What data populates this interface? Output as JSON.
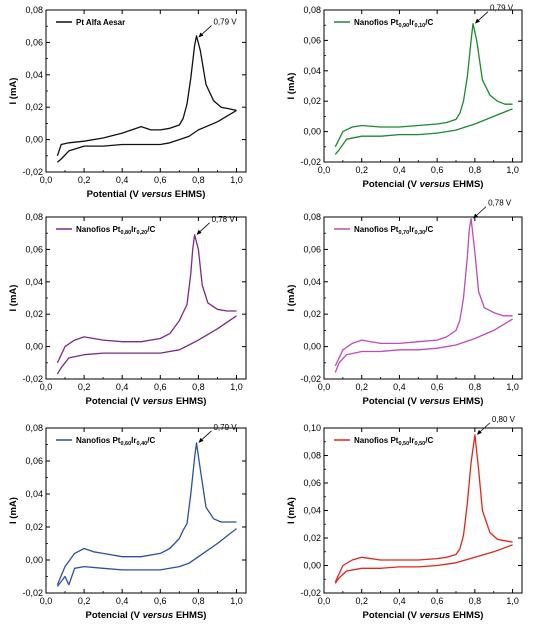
{
  "chart_data": [
    {
      "type": "line",
      "xlabel_parts": [
        "Potential (V ",
        "versus",
        " EHMS)"
      ],
      "ylabel": "I (mA)",
      "xlim": [
        0.0,
        1.05
      ],
      "ylim": [
        -0.02,
        0.08
      ],
      "xticks": [
        "0,0",
        "0,2",
        "0,4",
        "0,6",
        "0,8",
        "1,0"
      ],
      "yticks": [
        "-0,02",
        "0,00",
        "0,02",
        "0,04",
        "0,06",
        "0,08"
      ],
      "legend_parts": [
        "Pt Alfa Aesar"
      ],
      "color": "#111111",
      "annotation": {
        "text": "0,79 V",
        "x": 0.79,
        "y": 0.063
      },
      "series": [
        {
          "name": "anodic",
          "x": [
            0.06,
            0.08,
            0.12,
            0.2,
            0.3,
            0.4,
            0.45,
            0.5,
            0.55,
            0.6,
            0.65,
            0.7,
            0.72,
            0.74,
            0.76,
            0.78,
            0.79,
            0.81,
            0.84,
            0.88,
            0.92,
            0.96,
            1.0
          ],
          "y": [
            -0.01,
            -0.003,
            -0.002,
            -0.001,
            0.001,
            0.004,
            0.006,
            0.008,
            0.006,
            0.006,
            0.007,
            0.009,
            0.013,
            0.022,
            0.038,
            0.058,
            0.064,
            0.055,
            0.034,
            0.024,
            0.02,
            0.019,
            0.018
          ]
        },
        {
          "name": "cathodic",
          "x": [
            1.0,
            0.9,
            0.8,
            0.75,
            0.7,
            0.65,
            0.6,
            0.5,
            0.4,
            0.3,
            0.2,
            0.12,
            0.08,
            0.06
          ],
          "y": [
            0.018,
            0.011,
            0.006,
            0.002,
            0.0,
            -0.002,
            -0.003,
            -0.003,
            -0.003,
            -0.004,
            -0.004,
            -0.007,
            -0.012,
            -0.014
          ]
        }
      ]
    },
    {
      "type": "line",
      "xlabel_parts": [
        "Potencial (V ",
        "versus",
        " EHMS)"
      ],
      "ylabel": "I (mA)",
      "xlim": [
        0.0,
        1.05
      ],
      "ylim": [
        -0.02,
        0.08
      ],
      "xticks": [
        "0,0",
        "0,2",
        "0,4",
        "0,6",
        "0,8",
        "1,0"
      ],
      "yticks": [
        "-0,02",
        "0,00",
        "0,02",
        "0,04",
        "0,06",
        "0,08"
      ],
      "legend_parts": [
        "Nanofios Pt",
        "0,90",
        "Ir",
        "0,10",
        "/C"
      ],
      "color": "#1a8a2e",
      "annotation": {
        "text": "0,79 V",
        "x": 0.79,
        "y": 0.071
      },
      "series": [
        {
          "name": "anodic",
          "x": [
            0.06,
            0.1,
            0.15,
            0.2,
            0.3,
            0.4,
            0.5,
            0.6,
            0.65,
            0.7,
            0.72,
            0.74,
            0.76,
            0.78,
            0.79,
            0.81,
            0.84,
            0.88,
            0.92,
            0.96,
            1.0
          ],
          "y": [
            -0.01,
            0.0,
            0.003,
            0.004,
            0.003,
            0.003,
            0.004,
            0.005,
            0.006,
            0.008,
            0.012,
            0.02,
            0.036,
            0.06,
            0.071,
            0.06,
            0.034,
            0.024,
            0.02,
            0.018,
            0.018
          ]
        },
        {
          "name": "cathodic",
          "x": [
            1.0,
            0.9,
            0.8,
            0.75,
            0.7,
            0.6,
            0.5,
            0.4,
            0.3,
            0.2,
            0.12,
            0.08,
            0.06
          ],
          "y": [
            0.015,
            0.01,
            0.005,
            0.003,
            0.001,
            -0.001,
            -0.002,
            -0.002,
            -0.003,
            -0.003,
            -0.005,
            -0.012,
            -0.015
          ]
        }
      ]
    },
    {
      "type": "line",
      "xlabel_parts": [
        "Potencial (V ",
        "versus",
        " EHMS)"
      ],
      "ylabel": "I (mA)",
      "xlim": [
        0.0,
        1.05
      ],
      "ylim": [
        -0.02,
        0.08
      ],
      "xticks": [
        "0,0",
        "0,2",
        "0,4",
        "0,6",
        "0,8",
        "1,0"
      ],
      "yticks": [
        "-0,02",
        "0,00",
        "0,02",
        "0,04",
        "0,06",
        "0,08"
      ],
      "legend_parts": [
        "Nanofios Pt",
        "0,80",
        "Ir",
        "0,20",
        "/C"
      ],
      "color": "#7a2a8a",
      "annotation": {
        "text": "0,78 V",
        "x": 0.78,
        "y": 0.069
      },
      "series": [
        {
          "name": "anodic",
          "x": [
            0.06,
            0.1,
            0.15,
            0.2,
            0.3,
            0.4,
            0.5,
            0.6,
            0.65,
            0.7,
            0.72,
            0.74,
            0.76,
            0.77,
            0.78,
            0.8,
            0.82,
            0.85,
            0.9,
            0.95,
            1.0
          ],
          "y": [
            -0.01,
            0.0,
            0.004,
            0.006,
            0.004,
            0.003,
            0.003,
            0.005,
            0.008,
            0.016,
            0.021,
            0.026,
            0.045,
            0.06,
            0.069,
            0.06,
            0.038,
            0.027,
            0.023,
            0.022,
            0.022
          ]
        },
        {
          "name": "cathodic",
          "x": [
            1.0,
            0.9,
            0.8,
            0.75,
            0.7,
            0.6,
            0.5,
            0.4,
            0.3,
            0.2,
            0.12,
            0.08,
            0.06
          ],
          "y": [
            0.019,
            0.011,
            0.004,
            0.001,
            -0.002,
            -0.004,
            -0.004,
            -0.004,
            -0.004,
            -0.005,
            -0.007,
            -0.013,
            -0.017
          ]
        }
      ]
    },
    {
      "type": "line",
      "xlabel_parts": [
        "Potencial (V ",
        "versus",
        " EHMS)"
      ],
      "ylabel": "I (mA)",
      "xlim": [
        0.0,
        1.05
      ],
      "ylim": [
        -0.02,
        0.08
      ],
      "xticks": [
        "0,0",
        "0,2",
        "0,4",
        "0,6",
        "0,8",
        "1,0"
      ],
      "yticks": [
        "-0,02",
        "0,00",
        "0,02",
        "0,04",
        "0,06",
        "0,08"
      ],
      "legend_parts": [
        "Nanofios Pt",
        "0,70",
        "Ir",
        "0,30",
        "/C"
      ],
      "color": "#c04ab6",
      "annotation": {
        "text": "0,78 V",
        "x": 0.78,
        "y": 0.079
      },
      "series": [
        {
          "name": "anodic",
          "x": [
            0.06,
            0.1,
            0.15,
            0.2,
            0.3,
            0.4,
            0.5,
            0.6,
            0.65,
            0.7,
            0.72,
            0.74,
            0.76,
            0.77,
            0.78,
            0.8,
            0.82,
            0.85,
            0.9,
            0.95,
            1.0
          ],
          "y": [
            -0.012,
            -0.002,
            0.002,
            0.004,
            0.002,
            0.002,
            0.003,
            0.004,
            0.006,
            0.01,
            0.016,
            0.03,
            0.055,
            0.072,
            0.079,
            0.058,
            0.034,
            0.024,
            0.021,
            0.019,
            0.019
          ]
        },
        {
          "name": "cathodic",
          "x": [
            1.0,
            0.9,
            0.8,
            0.75,
            0.7,
            0.6,
            0.5,
            0.4,
            0.3,
            0.2,
            0.12,
            0.08,
            0.06
          ],
          "y": [
            0.017,
            0.01,
            0.005,
            0.003,
            0.001,
            -0.001,
            -0.002,
            -0.002,
            -0.003,
            -0.003,
            -0.005,
            -0.01,
            -0.016
          ]
        }
      ]
    },
    {
      "type": "line",
      "xlabel_parts": [
        "Potencial (V ",
        "versus",
        " EHMS)"
      ],
      "ylabel": "I (mA)",
      "xlim": [
        0.0,
        1.05
      ],
      "ylim": [
        -0.02,
        0.08
      ],
      "xticks": [
        "0,0",
        "0,2",
        "0,4",
        "0,6",
        "0,8",
        "1,0"
      ],
      "yticks": [
        "-0,02",
        "0,00",
        "0,02",
        "0,04",
        "0,06",
        "0,08"
      ],
      "legend_parts": [
        "Nanofios Pt",
        "0,60",
        "Ir",
        "0,40",
        "/C"
      ],
      "color": "#2e4ea8",
      "annotation": {
        "text": "0,79 V",
        "x": 0.79,
        "y": 0.071
      },
      "series": [
        {
          "name": "anodic",
          "x": [
            0.06,
            0.1,
            0.15,
            0.2,
            0.25,
            0.3,
            0.4,
            0.5,
            0.6,
            0.65,
            0.7,
            0.72,
            0.74,
            0.76,
            0.78,
            0.79,
            0.81,
            0.84,
            0.88,
            0.92,
            0.96,
            1.0
          ],
          "y": [
            -0.015,
            -0.004,
            0.004,
            0.007,
            0.005,
            0.004,
            0.002,
            0.002,
            0.004,
            0.007,
            0.013,
            0.018,
            0.022,
            0.04,
            0.062,
            0.071,
            0.055,
            0.032,
            0.025,
            0.023,
            0.023,
            0.023
          ]
        },
        {
          "name": "cathodic",
          "x": [
            1.0,
            0.9,
            0.8,
            0.75,
            0.7,
            0.6,
            0.5,
            0.4,
            0.3,
            0.2,
            0.15,
            0.12,
            0.1,
            0.08,
            0.06
          ],
          "y": [
            0.019,
            0.01,
            0.002,
            -0.002,
            -0.004,
            -0.006,
            -0.006,
            -0.006,
            -0.005,
            -0.004,
            -0.005,
            -0.015,
            -0.01,
            -0.013,
            -0.016
          ]
        }
      ]
    },
    {
      "type": "line",
      "xlabel_parts": [
        "Potencial (V ",
        "versus",
        " EHMS)"
      ],
      "ylabel": "I (mA)",
      "xlim": [
        0.0,
        1.05
      ],
      "ylim": [
        -0.02,
        0.1
      ],
      "xticks": [
        "0,0",
        "0,2",
        "0,4",
        "0,6",
        "0,8",
        "1,0"
      ],
      "yticks": [
        "-0,02",
        "0,00",
        "0,02",
        "0,04",
        "0,06",
        "0,08",
        "0,10"
      ],
      "legend_parts": [
        "Nanofios Pt",
        "0,50",
        "Ir",
        "0,50",
        "/C"
      ],
      "color": "#e0261c",
      "annotation": {
        "text": "0,80 V",
        "x": 0.8,
        "y": 0.095
      },
      "series": [
        {
          "name": "anodic",
          "x": [
            0.06,
            0.1,
            0.15,
            0.2,
            0.3,
            0.4,
            0.5,
            0.6,
            0.65,
            0.7,
            0.72,
            0.74,
            0.76,
            0.78,
            0.8,
            0.82,
            0.84,
            0.88,
            0.92,
            0.96,
            1.0
          ],
          "y": [
            -0.012,
            0.0,
            0.004,
            0.006,
            0.004,
            0.004,
            0.004,
            0.005,
            0.006,
            0.008,
            0.012,
            0.022,
            0.045,
            0.075,
            0.095,
            0.07,
            0.04,
            0.024,
            0.019,
            0.018,
            0.017
          ]
        },
        {
          "name": "cathodic",
          "x": [
            1.0,
            0.9,
            0.8,
            0.75,
            0.7,
            0.6,
            0.5,
            0.4,
            0.3,
            0.2,
            0.12,
            0.08,
            0.06
          ],
          "y": [
            0.015,
            0.01,
            0.006,
            0.004,
            0.002,
            0.0,
            -0.001,
            -0.001,
            -0.002,
            -0.002,
            -0.004,
            -0.009,
            -0.013
          ]
        }
      ]
    }
  ]
}
